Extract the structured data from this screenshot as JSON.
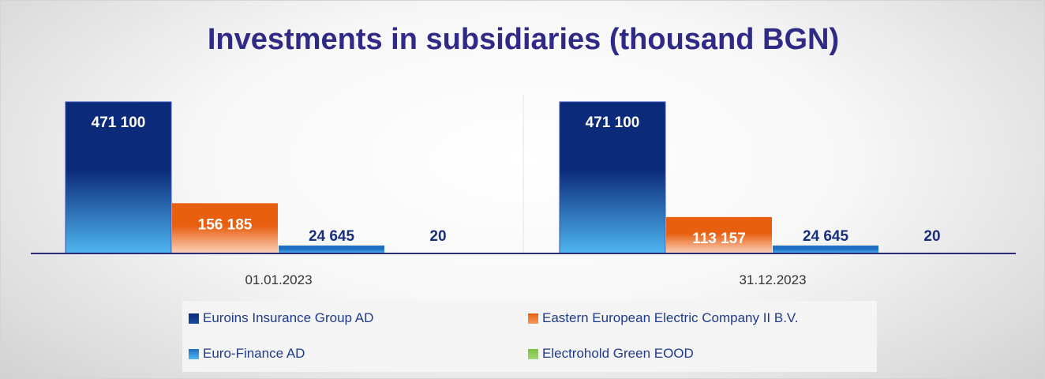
{
  "chart_data": {
    "type": "bar",
    "title": "Investments in subsidiaries (thousand BGN)",
    "categories": [
      "01.01.2023",
      "31.12.2023"
    ],
    "series": [
      {
        "name": "Euroins Insurance Group AD",
        "values": [
          471100,
          471100
        ],
        "labels": [
          "471 100",
          "471 100"
        ],
        "color": "#0b2a7a",
        "color_light": "#4fb6f0"
      },
      {
        "name": "Eastern European Electric Company II B.V.",
        "values": [
          156185,
          113157
        ],
        "labels": [
          "156 185",
          "113 157"
        ],
        "color": "#e85f10",
        "color_light": "#fbd3bc"
      },
      {
        "name": "Euro-Finance AD",
        "values": [
          24645,
          24645
        ],
        "labels": [
          "24 645",
          "24 645"
        ],
        "color": "#1f6fc4",
        "color_light": "#4fb6f0"
      },
      {
        "name": "Electrohold Green EOOD",
        "values": [
          20,
          20
        ],
        "labels": [
          "20",
          "20"
        ],
        "color": "#7cc242",
        "color_light": "#b6e08a"
      }
    ],
    "legend_position": "bottom",
    "ylim": [
      0,
      471100
    ],
    "grid": false
  }
}
